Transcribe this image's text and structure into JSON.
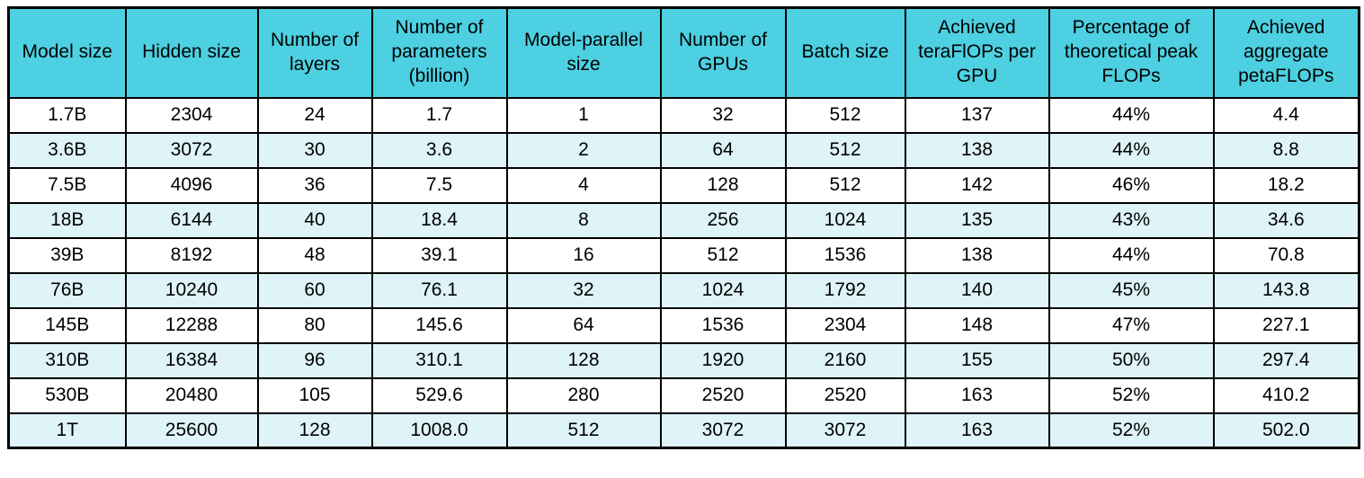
{
  "chart_data": {
    "type": "table",
    "title": "",
    "columns": [
      "Model size",
      "Hidden size",
      "Number of layers",
      "Number of parameters (billion)",
      "Model-parallel size",
      "Number of GPUs",
      "Batch size",
      "Achieved teraFlOPs per GPU",
      "Percentage of theoretical peak FLOPs",
      "Achieved aggregate petaFLOPs"
    ],
    "rows": [
      [
        "1.7B",
        "2304",
        "24",
        "1.7",
        "1",
        "32",
        "512",
        "137",
        "44%",
        "4.4"
      ],
      [
        "3.6B",
        "3072",
        "30",
        "3.6",
        "2",
        "64",
        "512",
        "138",
        "44%",
        "8.8"
      ],
      [
        "7.5B",
        "4096",
        "36",
        "7.5",
        "4",
        "128",
        "512",
        "142",
        "46%",
        "18.2"
      ],
      [
        "18B",
        "6144",
        "40",
        "18.4",
        "8",
        "256",
        "1024",
        "135",
        "43%",
        "34.6"
      ],
      [
        "39B",
        "8192",
        "48",
        "39.1",
        "16",
        "512",
        "1536",
        "138",
        "44%",
        "70.8"
      ],
      [
        "76B",
        "10240",
        "60",
        "76.1",
        "32",
        "1024",
        "1792",
        "140",
        "45%",
        "143.8"
      ],
      [
        "145B",
        "12288",
        "80",
        "145.6",
        "64",
        "1536",
        "2304",
        "148",
        "47%",
        "227.1"
      ],
      [
        "310B",
        "16384",
        "96",
        "310.1",
        "128",
        "1920",
        "2160",
        "155",
        "50%",
        "297.4"
      ],
      [
        "530B",
        "20480",
        "105",
        "529.6",
        "280",
        "2520",
        "2520",
        "163",
        "52%",
        "410.2"
      ],
      [
        "1T",
        "25600",
        "128",
        "1008.0",
        "512",
        "3072",
        "3072",
        "163",
        "52%",
        "502.0"
      ]
    ],
    "layout_hints": {
      "header_row": true,
      "alternating_row_shading": "even data rows shaded pale cyan",
      "cell_alignment": "center",
      "grid": "all borders black"
    }
  },
  "colors": {
    "header_bg": "#4DD0E1",
    "row_bg": "#FFFFFF",
    "row_alt_bg": "#DFF4F8",
    "border": "#000000",
    "text": "#000000"
  }
}
